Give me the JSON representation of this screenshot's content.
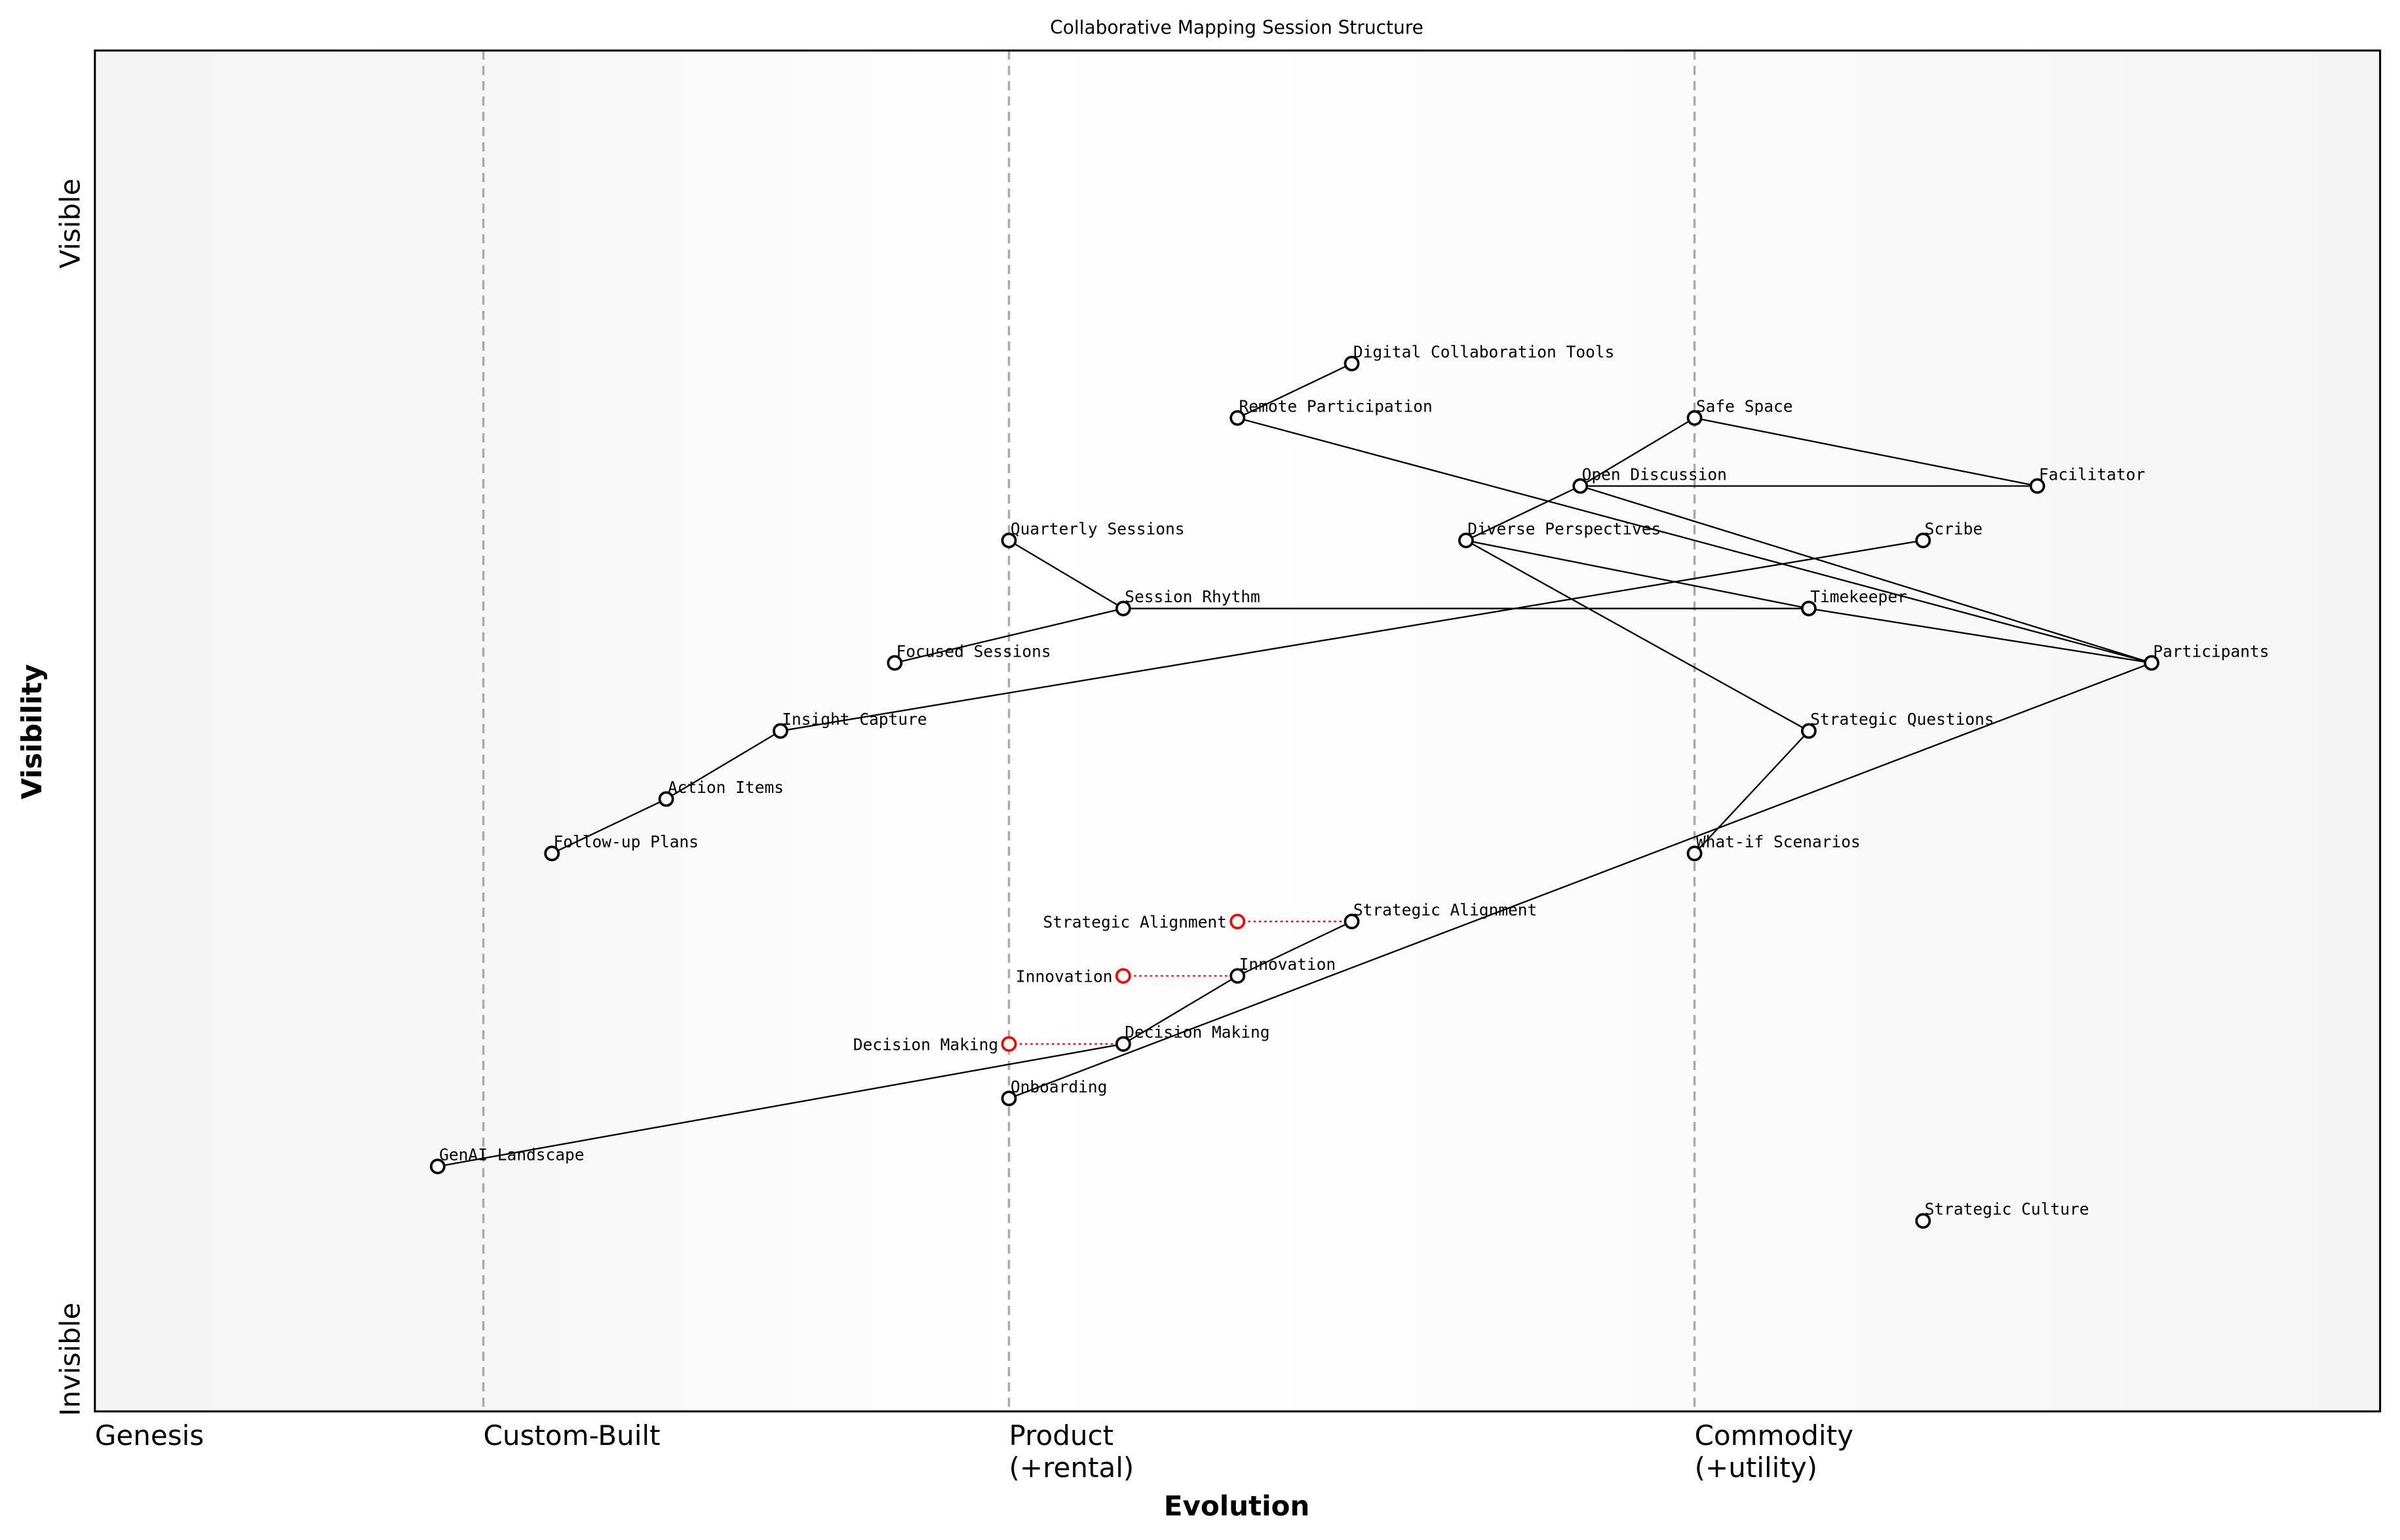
{
  "title": "Collaborative Mapping Session Structure",
  "xlabel": "Evolution",
  "ylabel": "Visibility",
  "y_ticks": {
    "top": "Visible",
    "bottom": "Invisible"
  },
  "stages": [
    {
      "label": "Genesis",
      "at": 0.0
    },
    {
      "label": "Custom-Built",
      "at": 0.17
    },
    {
      "label": "Product\n(+rental)",
      "at": 0.4
    },
    {
      "label": "Commodity\n(+utility)",
      "at": 0.7
    }
  ],
  "colors": {
    "node": "#000000",
    "evolve": "#ff0000",
    "divider": "#aaaaaa",
    "genesis_band": "#f5f5f5",
    "commodity_band": "#f5f5f5"
  },
  "chart_data": {
    "type": "wardley-map",
    "xlim": [
      0,
      1
    ],
    "ylim": [
      0,
      1
    ],
    "nodes": [
      {
        "name": "Digital Collaboration Tools",
        "evolution": 0.55,
        "visibility": 0.77
      },
      {
        "name": "Remote Participation",
        "evolution": 0.5,
        "visibility": 0.73
      },
      {
        "name": "Safe Space",
        "evolution": 0.7,
        "visibility": 0.73
      },
      {
        "name": "Open Discussion",
        "evolution": 0.65,
        "visibility": 0.68
      },
      {
        "name": "Facilitator",
        "evolution": 0.85,
        "visibility": 0.68
      },
      {
        "name": "Quarterly Sessions",
        "evolution": 0.4,
        "visibility": 0.64
      },
      {
        "name": "Diverse Perspectives",
        "evolution": 0.6,
        "visibility": 0.64
      },
      {
        "name": "Scribe",
        "evolution": 0.8,
        "visibility": 0.64
      },
      {
        "name": "Session Rhythm",
        "evolution": 0.45,
        "visibility": 0.59
      },
      {
        "name": "Timekeeper",
        "evolution": 0.75,
        "visibility": 0.59
      },
      {
        "name": "Focused Sessions",
        "evolution": 0.35,
        "visibility": 0.55
      },
      {
        "name": "Participants",
        "evolution": 0.9,
        "visibility": 0.55
      },
      {
        "name": "Insight Capture",
        "evolution": 0.3,
        "visibility": 0.5
      },
      {
        "name": "Strategic Questions",
        "evolution": 0.75,
        "visibility": 0.5
      },
      {
        "name": "Action Items",
        "evolution": 0.25,
        "visibility": 0.45
      },
      {
        "name": "Follow-up Plans",
        "evolution": 0.2,
        "visibility": 0.41
      },
      {
        "name": "What-if Scenarios",
        "evolution": 0.7,
        "visibility": 0.41
      },
      {
        "name": "Strategic Alignment",
        "evolution": 0.55,
        "visibility": 0.36
      },
      {
        "name": "Innovation",
        "evolution": 0.5,
        "visibility": 0.32
      },
      {
        "name": "Decision Making",
        "evolution": 0.45,
        "visibility": 0.27
      },
      {
        "name": "Onboarding",
        "evolution": 0.4,
        "visibility": 0.23
      },
      {
        "name": "GenAI Landscape",
        "evolution": 0.15,
        "visibility": 0.18
      },
      {
        "name": "Strategic Culture",
        "evolution": 0.8,
        "visibility": 0.14
      }
    ],
    "evolving": [
      {
        "name": "Strategic Alignment",
        "evolution": 0.5,
        "visibility": 0.36,
        "target": "Strategic Alignment"
      },
      {
        "name": "Innovation",
        "evolution": 0.45,
        "visibility": 0.32,
        "target": "Innovation"
      },
      {
        "name": "Decision Making",
        "evolution": 0.4,
        "visibility": 0.27,
        "target": "Decision Making"
      }
    ],
    "links": [
      [
        "Digital Collaboration Tools",
        "Remote Participation"
      ],
      [
        "Remote Participation",
        "Participants"
      ],
      [
        "Safe Space",
        "Facilitator"
      ],
      [
        "Safe Space",
        "Open Discussion"
      ],
      [
        "Open Discussion",
        "Diverse Perspectives"
      ],
      [
        "Open Discussion",
        "Facilitator"
      ],
      [
        "Open Discussion",
        "Participants"
      ],
      [
        "Quarterly Sessions",
        "Session Rhythm"
      ],
      [
        "Session Rhythm",
        "Focused Sessions"
      ],
      [
        "Session Rhythm",
        "Timekeeper"
      ],
      [
        "Diverse Perspectives",
        "Timekeeper"
      ],
      [
        "Timekeeper",
        "Participants"
      ],
      [
        "Diverse Perspectives",
        "Strategic Questions"
      ],
      [
        "Strategic Questions",
        "What-if Scenarios"
      ],
      [
        "Scribe",
        "Insight Capture"
      ],
      [
        "Insight Capture",
        "Action Items"
      ],
      [
        "Action Items",
        "Follow-up Plans"
      ],
      [
        "Participants",
        "Onboarding"
      ],
      [
        "Strategic Alignment",
        "Innovation"
      ],
      [
        "Innovation",
        "Decision Making"
      ],
      [
        "Decision Making",
        "GenAI Landscape"
      ]
    ]
  }
}
